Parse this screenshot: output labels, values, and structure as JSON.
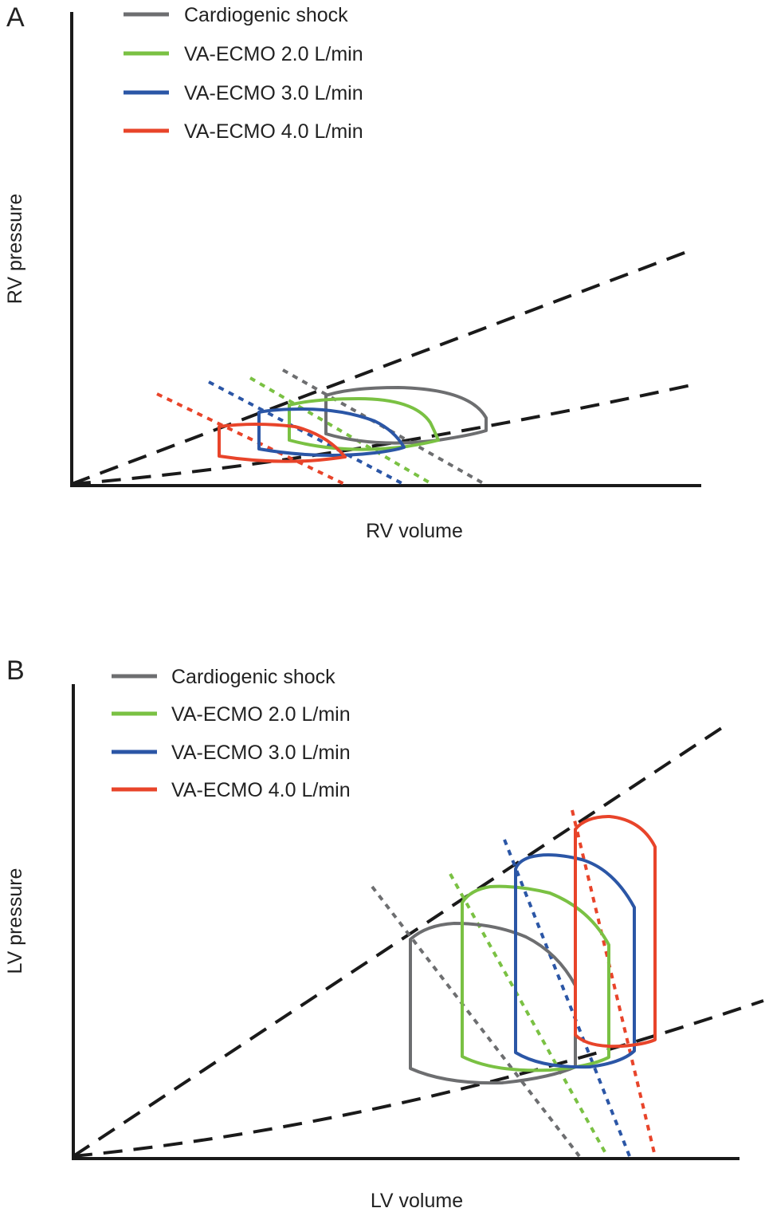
{
  "panels": [
    {
      "letter": "A",
      "xlabel": "RV volume",
      "ylabel": "RV pressure",
      "legend": [
        {
          "label": "Cardiogenic shock",
          "color": "#6d6e70"
        },
        {
          "label": "VA-ECMO 2.0 L/min",
          "color": "#7ac143"
        },
        {
          "label": "VA-ECMO 3.0 L/min",
          "color": "#2b56a6"
        },
        {
          "label": "VA-ECMO 4.0 L/min",
          "color": "#e8442a"
        }
      ]
    },
    {
      "letter": "B",
      "xlabel": "LV volume",
      "ylabel": "LV pressure",
      "legend": [
        {
          "label": "Cardiogenic shock",
          "color": "#6d6e70"
        },
        {
          "label": "VA-ECMO 2.0 L/min",
          "color": "#7ac143"
        },
        {
          "label": "VA-ECMO 3.0 L/min",
          "color": "#2b56a6"
        },
        {
          "label": "VA-ECMO 4.0 L/min",
          "color": "#e8442a"
        }
      ]
    }
  ]
}
